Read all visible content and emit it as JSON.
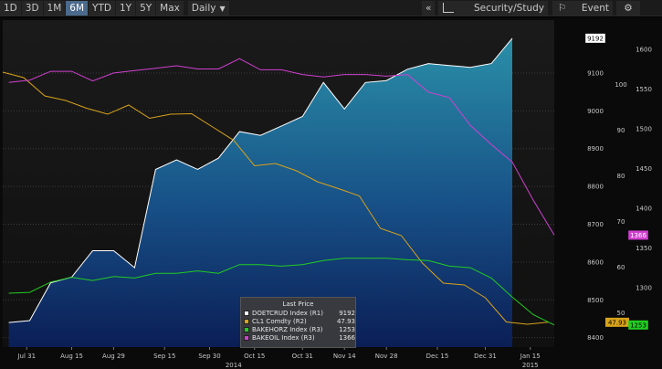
{
  "toolbar": {
    "buttons": [
      "1D",
      "3D",
      "1M",
      "6M",
      "YTD",
      "1Y",
      "5Y",
      "Max"
    ],
    "active": "6M",
    "frequency": "Daily",
    "collapse_label": "«",
    "security_study_label": "Security/Study",
    "event_label": "Event",
    "settings_icon": "gear-icon"
  },
  "legend": {
    "title": "Last Price",
    "rows": [
      {
        "name": "DOETCRUD Index (R1)",
        "value": "9192",
        "color": "#ffffff"
      },
      {
        "name": "CL1 Comdty (R2)",
        "value": "47.93",
        "color": "#d8a21a"
      },
      {
        "name": "BAKEHORZ Index (R3)",
        "value": "1253",
        "color": "#22cc22"
      },
      {
        "name": "BAKEOIL Index (R3)",
        "value": "1366",
        "color": "#d040d0"
      }
    ]
  },
  "axis_labels": {
    "x_ticks": [
      "Jul 31",
      "Aug 15",
      "Aug 29",
      "Sep 15",
      "Sep 30",
      "Oct 15",
      "Oct 31",
      "Nov 14",
      "Nov 28",
      "Dec 15",
      "Dec 31",
      "Jan 15"
    ],
    "x_years": [
      {
        "label": "2014",
        "date": "2014-10-08"
      },
      {
        "label": "2015",
        "date": "2015-01-15"
      }
    ],
    "r1_ticks": [
      "8400",
      "8500",
      "8600",
      "8700",
      "8800",
      "8900",
      "9000",
      "9100"
    ],
    "r2_ticks": [
      "50",
      "60",
      "70",
      "80",
      "90",
      "100"
    ],
    "r3_ticks": [
      "1300",
      "1350",
      "1400",
      "1450",
      "1500",
      "1550",
      "1600"
    ]
  },
  "last_value_tags": [
    {
      "axis": "r1",
      "value": 9192,
      "text": "9192",
      "bg": "#ffffff",
      "fg": "#000000"
    },
    {
      "axis": "r3",
      "value": 1366,
      "text": "1366",
      "bg": "#d040d0",
      "fg": "#ffffff"
    },
    {
      "axis": "r2",
      "value": 47.93,
      "text": "47.93",
      "bg": "#d8a21a",
      "fg": "#000000"
    },
    {
      "axis": "r3",
      "value": 1253,
      "text": "1253",
      "bg": "#22cc22",
      "fg": "#000000"
    }
  ],
  "chart_data": {
    "type": "line",
    "x_range": [
      "2014-07-23",
      "2015-01-23"
    ],
    "axes": {
      "r1": {
        "min": 8375,
        "max": 9240
      },
      "r2": {
        "min": 42.5,
        "max": 114.1
      },
      "r3": {
        "min": 1225.2,
        "max": 1636.5
      }
    },
    "series": [
      {
        "name": "DOETCRUD Index (R1)",
        "axis": "r1",
        "style": "area",
        "color": "#ffffff",
        "x": [
          "2014-07-25",
          "2014-08-01",
          "2014-08-08",
          "2014-08-15",
          "2014-08-22",
          "2014-08-29",
          "2014-09-05",
          "2014-09-12",
          "2014-09-19",
          "2014-09-26",
          "2014-10-03",
          "2014-10-10",
          "2014-10-17",
          "2014-10-24",
          "2014-10-31",
          "2014-11-07",
          "2014-11-14",
          "2014-11-21",
          "2014-11-28",
          "2014-12-05",
          "2014-12-12",
          "2014-12-19",
          "2014-12-26",
          "2015-01-02",
          "2015-01-09"
        ],
        "values": [
          8440,
          8445,
          8545,
          8560,
          8630,
          8630,
          8585,
          8845,
          8870,
          8845,
          8875,
          8945,
          8935,
          8960,
          8985,
          9075,
          9005,
          9075,
          9080,
          9110,
          9125,
          9120,
          9115,
          9125,
          9192
        ]
      },
      {
        "name": "CL1 Comdty (R2)",
        "axis": "r2",
        "style": "line",
        "color": "#d8a21a",
        "x": [
          "2014-07-23",
          "2014-07-30",
          "2014-08-06",
          "2014-08-13",
          "2014-08-20",
          "2014-08-27",
          "2014-09-03",
          "2014-09-10",
          "2014-09-17",
          "2014-09-24",
          "2014-10-01",
          "2014-10-08",
          "2014-10-15",
          "2014-10-22",
          "2014-10-29",
          "2014-11-05",
          "2014-11-12",
          "2014-11-19",
          "2014-11-26",
          "2014-12-03",
          "2014-12-10",
          "2014-12-17",
          "2014-12-24",
          "2014-12-31",
          "2015-01-07",
          "2015-01-14",
          "2015-01-21"
        ],
        "values": [
          102.7,
          101.5,
          97.5,
          96.5,
          94.8,
          93.5,
          95.5,
          92.6,
          93.5,
          93.6,
          90.7,
          87.8,
          82.2,
          82.7,
          81.1,
          78.7,
          77.2,
          75.6,
          68.5,
          66.9,
          60.9,
          56.5,
          56.1,
          53.3,
          48.0,
          47.5,
          47.93
        ]
      },
      {
        "name": "BAKEHORZ Index (R3)",
        "axis": "r3",
        "style": "line",
        "color": "#22cc22",
        "x": [
          "2014-07-25",
          "2014-08-01",
          "2014-08-08",
          "2014-08-15",
          "2014-08-22",
          "2014-08-29",
          "2014-09-05",
          "2014-09-12",
          "2014-09-19",
          "2014-09-26",
          "2014-10-03",
          "2014-10-10",
          "2014-10-17",
          "2014-10-24",
          "2014-10-31",
          "2014-11-07",
          "2014-11-14",
          "2014-11-21",
          "2014-11-28",
          "2014-12-05",
          "2014-12-12",
          "2014-12-19",
          "2014-12-26",
          "2015-01-02",
          "2015-01-09",
          "2015-01-16",
          "2015-01-23"
        ],
        "values": [
          1293,
          1294,
          1307,
          1313,
          1309,
          1314,
          1312,
          1318,
          1318,
          1321,
          1318,
          1329,
          1329,
          1327,
          1329,
          1334,
          1337,
          1337,
          1337,
          1335,
          1334,
          1327,
          1325,
          1312,
          1288,
          1266,
          1253
        ]
      },
      {
        "name": "BAKEOIL Index (R3)",
        "axis": "r3",
        "style": "line",
        "color": "#d040d0",
        "x": [
          "2014-07-25",
          "2014-08-01",
          "2014-08-08",
          "2014-08-15",
          "2014-08-22",
          "2014-08-29",
          "2014-09-05",
          "2014-09-12",
          "2014-09-19",
          "2014-09-26",
          "2014-10-03",
          "2014-10-10",
          "2014-10-17",
          "2014-10-24",
          "2014-10-31",
          "2014-11-07",
          "2014-11-14",
          "2014-11-21",
          "2014-11-28",
          "2014-12-05",
          "2014-12-12",
          "2014-12-19",
          "2014-12-26",
          "2015-01-02",
          "2015-01-09",
          "2015-01-16",
          "2015-01-23"
        ],
        "values": [
          1558,
          1561,
          1572,
          1572,
          1560,
          1570,
          1573,
          1576,
          1579,
          1575,
          1575,
          1588,
          1574,
          1574,
          1568,
          1565,
          1568,
          1568,
          1566,
          1568,
          1546,
          1539,
          1504,
          1480,
          1458,
          1410,
          1366
        ]
      }
    ],
    "grid": true,
    "legend_position": "bottom-center"
  }
}
